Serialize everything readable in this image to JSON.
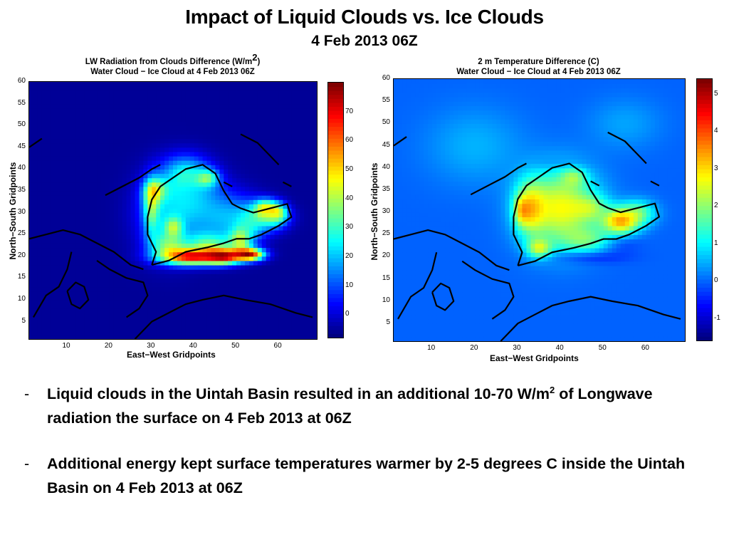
{
  "slide": {
    "title": "Impact of Liquid Clouds vs. Ice Clouds",
    "subtitle": "4 Feb 2013 06Z"
  },
  "chart_data": [
    {
      "type": "heatmap",
      "title_line1": "LW Radiation from Clouds Difference (W/m",
      "title_sup": "2",
      "title_line1_end": ")",
      "title_line2": "Water Cloud − Ice Cloud at 4 Feb 2013 06Z",
      "xlabel": "East−West Gridpoints",
      "ylabel": "North−South Gridpoints",
      "xlim": [
        1,
        69
      ],
      "ylim": [
        1,
        60
      ],
      "xticks": [
        10,
        20,
        30,
        40,
        50,
        60
      ],
      "yticks": [
        5,
        10,
        15,
        20,
        25,
        30,
        35,
        40,
        45,
        50,
        55,
        60
      ],
      "colorbar": {
        "min": -8,
        "max": 80,
        "ticks": [
          0,
          10,
          20,
          30,
          40,
          50,
          60,
          70
        ]
      },
      "colormap": "jet",
      "background_value": -6,
      "features": [
        {
          "x": 34,
          "y": 30,
          "value": 18,
          "sx": 5,
          "sy": 6
        },
        {
          "x": 40,
          "y": 33,
          "value": 14,
          "sx": 5,
          "sy": 4
        },
        {
          "x": 47,
          "y": 29,
          "value": 16,
          "sx": 5,
          "sy": 4
        },
        {
          "x": 53,
          "y": 28,
          "value": 22,
          "sx": 3,
          "sy": 3
        },
        {
          "x": 58,
          "y": 29,
          "value": 26,
          "sx": 3,
          "sy": 2
        },
        {
          "x": 38,
          "y": 39,
          "value": 22,
          "sx": 4,
          "sy": 3
        },
        {
          "x": 30,
          "y": 31,
          "value": 40,
          "sx": 1.3,
          "sy": 4
        },
        {
          "x": 31,
          "y": 35,
          "value": 34,
          "sx": 2,
          "sy": 2
        },
        {
          "x": 39,
          "y": 20,
          "value": 72,
          "sx": 5,
          "sy": 1.3
        },
        {
          "x": 47,
          "y": 20,
          "value": 64,
          "sx": 3,
          "sy": 1.2
        },
        {
          "x": 53,
          "y": 20.5,
          "value": 70,
          "sx": 2.5,
          "sy": 1
        },
        {
          "x": 34,
          "y": 23,
          "value": 35,
          "sx": 3,
          "sy": 2
        },
        {
          "x": 44,
          "y": 23,
          "value": 30,
          "sx": 4,
          "sy": 2
        },
        {
          "x": 51,
          "y": 24,
          "value": 30,
          "sx": 2,
          "sy": 2
        },
        {
          "x": 57,
          "y": 31,
          "value": 38,
          "sx": 2,
          "sy": 1.5
        },
        {
          "x": 60,
          "y": 30,
          "value": 30,
          "sx": 1.5,
          "sy": 1.5
        },
        {
          "x": 43,
          "y": 38,
          "value": 28,
          "sx": 2,
          "sy": 1.5
        },
        {
          "x": 35,
          "y": 27,
          "value": 42,
          "sx": 1.5,
          "sy": 1.5
        }
      ]
    },
    {
      "type": "heatmap",
      "title_line1": "2 m Temperature Difference (C)",
      "title_line2": "Water Cloud − Ice Cloud at 4 Feb 2013 06Z",
      "xlabel": "East−West Gridpoints",
      "ylabel": "North−South Gridpoints",
      "xlim": [
        1,
        69
      ],
      "ylim": [
        1,
        60
      ],
      "xticks": [
        10,
        20,
        30,
        40,
        50,
        60
      ],
      "yticks": [
        5,
        10,
        15,
        20,
        25,
        30,
        35,
        40,
        45,
        50,
        55,
        60
      ],
      "colorbar": {
        "min": -1.6,
        "max": 5.4,
        "ticks": [
          -1,
          0,
          1,
          2,
          3,
          4,
          5
        ]
      },
      "colormap": "jet",
      "background_value": -0.05,
      "features": [
        {
          "x": 40,
          "y": 31,
          "value": 2.7,
          "sx": 6,
          "sy": 6
        },
        {
          "x": 33,
          "y": 31,
          "value": 2.7,
          "sx": 2.5,
          "sy": 4
        },
        {
          "x": 31,
          "y": 30.5,
          "value": 1.9,
          "sx": 1.2,
          "sy": 2
        },
        {
          "x": 47,
          "y": 31,
          "value": 1.5,
          "sx": 3,
          "sy": 2
        },
        {
          "x": 54,
          "y": 28,
          "value": 3.2,
          "sx": 3,
          "sy": 2
        },
        {
          "x": 35,
          "y": 22,
          "value": 2.2,
          "sx": 2,
          "sy": 1.5
        },
        {
          "x": 43,
          "y": 38,
          "value": 1.4,
          "sx": 2,
          "sy": 1.5
        },
        {
          "x": 58,
          "y": 30,
          "value": 1.6,
          "sx": 3,
          "sy": 2
        },
        {
          "x": 46,
          "y": 24,
          "value": 1.4,
          "sx": 4,
          "sy": 2
        },
        {
          "x": 46,
          "y": 20,
          "value": -0.7,
          "sx": 6,
          "sy": 1
        },
        {
          "x": 54,
          "y": 23,
          "value": -0.4,
          "sx": 3,
          "sy": 1.5
        },
        {
          "x": 40,
          "y": 41,
          "value": -0.3,
          "sx": 4,
          "sy": 1
        },
        {
          "x": 20,
          "y": 45,
          "value": 0.5,
          "sx": 8,
          "sy": 6
        },
        {
          "x": 55,
          "y": 50,
          "value": 0.4,
          "sx": 6,
          "sy": 4
        }
      ]
    }
  ],
  "bullets": [
    {
      "dash": "-",
      "text_before": "Liquid clouds in the Uintah Basin resulted in an additional 10-70 W/m",
      "sup": "2",
      "text_after": " of Longwave radiation the surface on 4 Feb 2013 at 06Z"
    },
    {
      "dash": "-",
      "text_before": "Additional energy kept surface temperatures warmer by 2-5 degrees C inside the Uintah Basin on 4 Feb 2013 at 06Z"
    }
  ]
}
